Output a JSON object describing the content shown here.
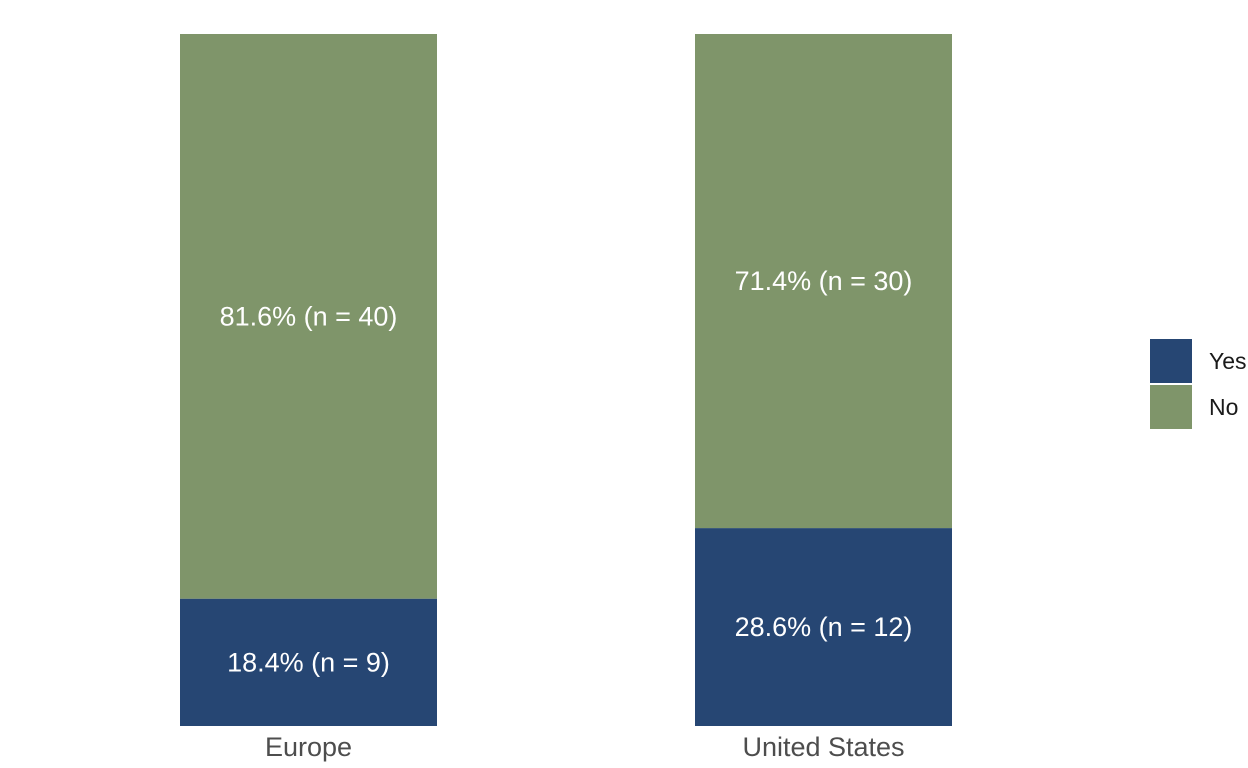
{
  "chart_data": {
    "type": "bar",
    "stacked": true,
    "percent_stacked": true,
    "categories": [
      "Europe",
      "United States"
    ],
    "series": [
      {
        "name": "Yes",
        "color": "#264673",
        "values": [
          18.4,
          28.6
        ],
        "counts": [
          9,
          12
        ],
        "labels": [
          "18.4% (n = 9)",
          "28.6% (n = 12)"
        ]
      },
      {
        "name": "No",
        "color": "#7f956a",
        "values": [
          81.6,
          71.4
        ],
        "counts": [
          40,
          30
        ],
        "labels": [
          "81.6% (n = 40)",
          "71.4% (n = 30)"
        ]
      }
    ],
    "ylim": [
      0,
      100
    ],
    "grid": false,
    "legend": {
      "position": "right",
      "entries": [
        "Yes",
        "No"
      ]
    }
  }
}
